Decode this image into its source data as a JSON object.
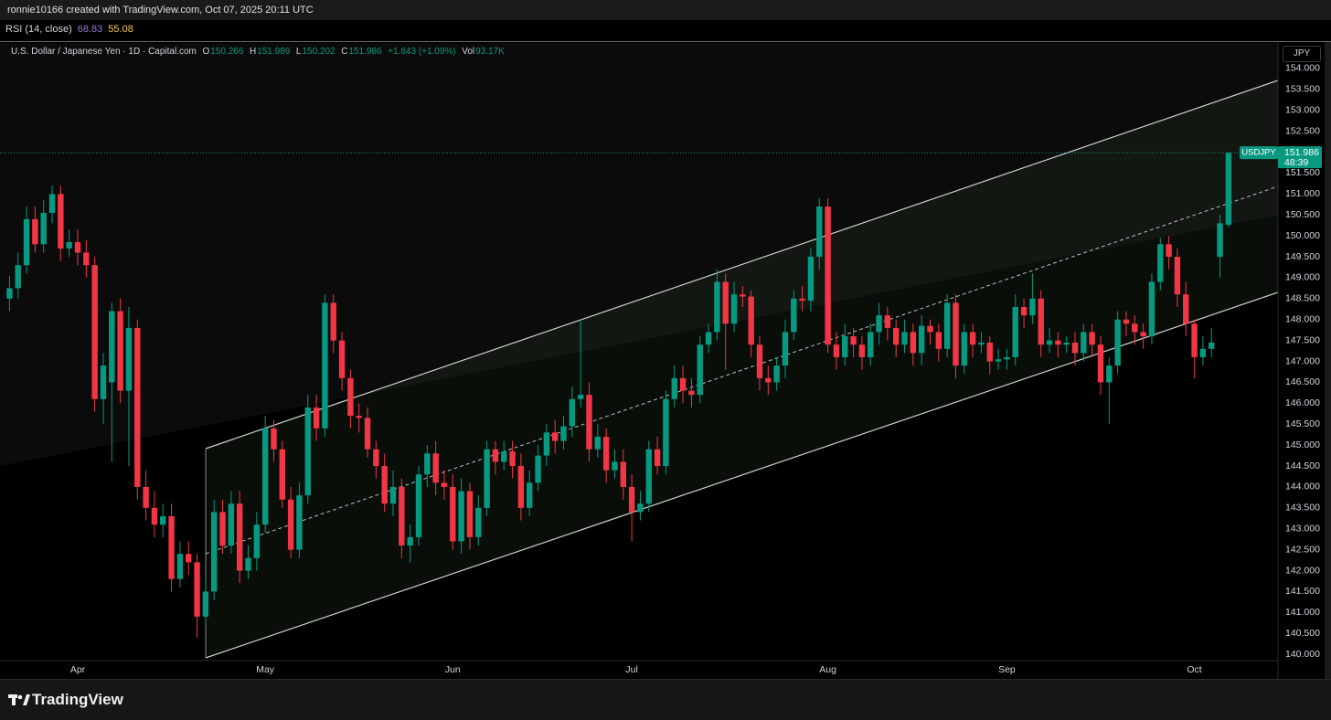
{
  "attribution": "ronnie10166 created with TradingView.com, Oct 07, 2025 20:11 UTC",
  "indicator": {
    "name": "RSI (14, close)",
    "values": [
      68.83,
      55.08
    ],
    "colors": [
      "#9575cd",
      "#f7c948"
    ]
  },
  "currency": "JPY",
  "logo": "TradingView",
  "chart_data": {
    "type": "candlestick",
    "title": "U.S. Dollar / Japanese Yen · 1D · Capital.com",
    "ohlc_labels": {
      "open": "O",
      "high": "H",
      "low": "L",
      "close": "C"
    },
    "change": "+1.643 (+1.09%)",
    "volume_label": "Vol",
    "volume": "93.17K",
    "symbol": "USDJPY",
    "countdown": "48:39",
    "up_color": "#089981",
    "down_color": "#f23645",
    "ylim": [
      139.85,
      154.61
    ],
    "yticks": [
      {
        "value": 140.0,
        "label": "140.000"
      },
      {
        "value": 140.5,
        "label": "140.500"
      },
      {
        "value": 141.0,
        "label": "141.000"
      },
      {
        "value": 141.5,
        "label": "141.500"
      },
      {
        "value": 142.0,
        "label": "142.000"
      },
      {
        "value": 142.5,
        "label": "142.500"
      },
      {
        "value": 143.0,
        "label": "143.000"
      },
      {
        "value": 143.5,
        "label": "143.500"
      },
      {
        "value": 144.0,
        "label": "144.000"
      },
      {
        "value": 144.5,
        "label": "144.500"
      },
      {
        "value": 145.0,
        "label": "145.000"
      },
      {
        "value": 145.5,
        "label": "145.500"
      },
      {
        "value": 146.0,
        "label": "146.000"
      },
      {
        "value": 146.5,
        "label": "146.500"
      },
      {
        "value": 147.0,
        "label": "147.000"
      },
      {
        "value": 147.5,
        "label": "147.500"
      },
      {
        "value": 148.0,
        "label": "148.000"
      },
      {
        "value": 148.5,
        "label": "148.500"
      },
      {
        "value": 149.0,
        "label": "149.000"
      },
      {
        "value": 149.5,
        "label": "149.500"
      },
      {
        "value": 150.0,
        "label": "150.000"
      },
      {
        "value": 150.5,
        "label": "150.500"
      },
      {
        "value": 151.0,
        "label": "151.000"
      },
      {
        "value": 151.5,
        "label": "151.500"
      },
      {
        "value": 152.0,
        "label": "152.000"
      },
      {
        "value": 152.5,
        "label": "152.500"
      },
      {
        "value": 153.0,
        "label": "153.000"
      },
      {
        "value": 153.5,
        "label": "153.500"
      },
      {
        "value": 154.0,
        "label": "154.000"
      }
    ],
    "categories": [
      null,
      null,
      null,
      null,
      null,
      null,
      null,
      null,
      "Apr",
      null,
      null,
      null,
      null,
      null,
      null,
      null,
      null,
      null,
      null,
      null,
      null,
      null,
      null,
      null,
      null,
      null,
      null,
      null,
      null,
      null,
      "May",
      null,
      null,
      null,
      null,
      null,
      null,
      null,
      null,
      null,
      null,
      null,
      null,
      null,
      null,
      null,
      null,
      null,
      null,
      null,
      null,
      null,
      "Jun",
      null,
      null,
      null,
      null,
      null,
      null,
      null,
      null,
      null,
      null,
      null,
      null,
      null,
      null,
      null,
      null,
      null,
      null,
      null,
      null,
      "Jul",
      null,
      null,
      null,
      null,
      null,
      null,
      null,
      null,
      null,
      null,
      null,
      null,
      null,
      null,
      null,
      null,
      null,
      null,
      null,
      null,
      null,
      null,
      "Aug",
      null,
      null,
      null,
      null,
      null,
      null,
      null,
      null,
      null,
      null,
      null,
      null,
      null,
      null,
      null,
      null,
      null,
      null,
      null,
      null,
      "Sep",
      null,
      null,
      null,
      null,
      null,
      null,
      null,
      null,
      null,
      null,
      null,
      null,
      null,
      null,
      null,
      null,
      null,
      null,
      null,
      null,
      null,
      "Oct",
      null,
      null,
      null,
      null
    ],
    "open": [
      148.5,
      148.75,
      149.3,
      150.4,
      149.8,
      150.55,
      151.0,
      149.7,
      149.85,
      149.6,
      149.3,
      146.1,
      146.5,
      148.2,
      146.3,
      147.8,
      144.0,
      143.5,
      143.1,
      143.3,
      141.8,
      142.4,
      142.2,
      140.9,
      141.5,
      143.4,
      142.6,
      143.6,
      142.0,
      142.3,
      143.1,
      145.4,
      144.9,
      143.7,
      142.5,
      143.8,
      145.9,
      145.4,
      148.4,
      147.5,
      146.6,
      145.7,
      145.65,
      144.9,
      144.5,
      143.6,
      144.0,
      142.6,
      142.8,
      144.3,
      144.8,
      144.1,
      144.0,
      142.7,
      143.9,
      142.8,
      143.5,
      144.9,
      144.6,
      144.85,
      144.5,
      143.5,
      144.1,
      144.75,
      145.3,
      145.1,
      145.45,
      146.1,
      146.2,
      144.9,
      145.2,
      144.4,
      144.6,
      144.0,
      143.4,
      143.6,
      144.9,
      144.5,
      146.1,
      146.6,
      146.3,
      146.2,
      147.4,
      147.7,
      148.9,
      147.9,
      148.6,
      148.55,
      147.4,
      146.6,
      146.5,
      146.9,
      147.7,
      148.5,
      148.45,
      149.5,
      150.7,
      147.4,
      147.1,
      147.6,
      147.4,
      147.1,
      147.7,
      148.1,
      147.8,
      147.4,
      147.7,
      147.2,
      147.85,
      147.7,
      147.3,
      148.4,
      146.9,
      147.7,
      147.4,
      147.45,
      147.0,
      147.05,
      147.1,
      148.3,
      148.1,
      148.5,
      147.4,
      147.5,
      147.4,
      147.45,
      147.2,
      147.7,
      147.4,
      146.5,
      146.9,
      148.0,
      147.9,
      147.7,
      147.6,
      148.9,
      149.8,
      149.5,
      148.6,
      147.9,
      147.1,
      147.3,
      149.5,
      150.266
    ],
    "high": [
      149.05,
      149.6,
      150.7,
      150.7,
      150.85,
      151.2,
      151.2,
      150.15,
      150.15,
      149.9,
      149.5,
      147.2,
      148.4,
      148.5,
      148.3,
      148.0,
      144.4,
      143.9,
      143.6,
      143.6,
      142.7,
      142.7,
      142.4,
      141.8,
      143.7,
      143.7,
      143.9,
      143.9,
      142.6,
      143.4,
      145.7,
      145.6,
      145.1,
      144.0,
      144.1,
      146.2,
      146.2,
      148.6,
      148.6,
      147.7,
      146.8,
      146.0,
      145.9,
      145.1,
      144.8,
      144.4,
      144.2,
      143.1,
      144.5,
      145.0,
      145.1,
      144.4,
      144.3,
      144.2,
      144.1,
      143.8,
      145.1,
      145.1,
      145.1,
      145.1,
      144.8,
      144.4,
      145.0,
      145.5,
      145.6,
      145.7,
      146.4,
      148.0,
      146.5,
      145.5,
      145.4,
      144.9,
      144.9,
      144.3,
      143.9,
      145.1,
      145.2,
      146.3,
      146.9,
      146.9,
      146.6,
      147.6,
      147.9,
      149.2,
      149.1,
      148.9,
      148.8,
      148.7,
      147.6,
      146.9,
      147.1,
      148.0,
      148.7,
      148.8,
      149.7,
      150.9,
      150.9,
      147.7,
      147.9,
      147.8,
      147.6,
      147.9,
      148.4,
      148.3,
      148.0,
      148.0,
      147.9,
      148.1,
      148.0,
      147.9,
      148.6,
      148.6,
      147.9,
      147.9,
      147.7,
      147.6,
      147.3,
      147.3,
      148.6,
      148.5,
      149.1,
      148.7,
      147.8,
      147.7,
      147.6,
      147.7,
      147.9,
      147.9,
      147.6,
      147.1,
      148.2,
      148.2,
      148.1,
      147.9,
      149.1,
      149.95,
      150.0,
      149.7,
      148.9,
      148.0,
      147.6,
      147.8,
      150.5,
      151.989
    ],
    "low": [
      148.2,
      148.5,
      149.1,
      149.6,
      149.6,
      150.3,
      149.4,
      149.5,
      149.3,
      149.0,
      145.8,
      145.5,
      144.6,
      146.0,
      144.5,
      143.7,
      143.2,
      142.8,
      142.8,
      141.5,
      141.6,
      141.9,
      140.4,
      140.7,
      141.3,
      142.4,
      142.4,
      141.7,
      141.8,
      142.0,
      142.9,
      144.6,
      143.5,
      142.3,
      142.3,
      143.6,
      145.1,
      145.2,
      147.2,
      146.3,
      145.4,
      145.3,
      144.7,
      144.2,
      143.4,
      143.3,
      142.3,
      142.2,
      142.6,
      144.0,
      143.8,
      143.7,
      142.5,
      142.4,
      142.5,
      142.6,
      143.3,
      144.3,
      144.4,
      144.2,
      143.2,
      143.3,
      143.9,
      144.5,
      144.8,
      144.9,
      145.2,
      145.9,
      144.6,
      144.7,
      144.1,
      144.2,
      143.7,
      142.7,
      143.2,
      143.4,
      144.3,
      144.3,
      145.9,
      146.0,
      145.9,
      146.0,
      147.2,
      147.5,
      146.8,
      147.7,
      148.3,
      147.1,
      146.3,
      146.2,
      146.3,
      146.6,
      147.5,
      148.2,
      148.2,
      149.2,
      147.2,
      146.8,
      146.9,
      147.1,
      146.8,
      146.9,
      147.4,
      147.5,
      147.1,
      147.2,
      146.9,
      146.9,
      147.4,
      147.0,
      147.1,
      146.6,
      146.7,
      147.1,
      147.2,
      146.7,
      146.8,
      146.8,
      146.9,
      147.8,
      147.9,
      147.1,
      147.2,
      147.1,
      147.2,
      146.9,
      147.0,
      147.1,
      146.2,
      145.5,
      146.7,
      147.6,
      147.4,
      147.3,
      147.4,
      148.7,
      149.2,
      148.3,
      147.6,
      146.6,
      146.9,
      147.1,
      149.0,
      150.202
    ],
    "close": [
      148.75,
      149.3,
      150.4,
      149.8,
      150.55,
      151.0,
      149.7,
      149.85,
      149.6,
      149.3,
      146.1,
      146.9,
      148.2,
      146.3,
      147.8,
      144.0,
      143.5,
      143.1,
      143.3,
      141.8,
      142.4,
      142.2,
      140.9,
      141.5,
      143.4,
      142.6,
      143.6,
      142.0,
      142.3,
      143.1,
      145.4,
      144.9,
      143.7,
      142.5,
      143.8,
      145.9,
      145.4,
      148.4,
      147.5,
      146.6,
      145.7,
      145.65,
      144.9,
      144.5,
      143.6,
      144.0,
      142.6,
      142.8,
      144.3,
      144.8,
      144.1,
      144.0,
      142.7,
      143.9,
      142.8,
      143.5,
      144.9,
      144.6,
      144.85,
      144.5,
      143.5,
      144.1,
      144.75,
      145.3,
      145.1,
      145.45,
      146.1,
      146.2,
      144.9,
      145.2,
      144.4,
      144.6,
      144.0,
      143.4,
      143.6,
      144.9,
      144.5,
      146.1,
      146.6,
      146.3,
      146.2,
      147.4,
      147.7,
      148.9,
      147.9,
      148.6,
      148.55,
      147.4,
      146.6,
      146.5,
      146.9,
      147.7,
      148.5,
      148.45,
      149.5,
      150.7,
      147.4,
      147.1,
      147.6,
      147.4,
      147.1,
      147.7,
      148.1,
      147.8,
      147.4,
      147.7,
      147.2,
      147.85,
      147.7,
      147.3,
      148.4,
      146.9,
      147.7,
      147.4,
      147.45,
      147.0,
      147.05,
      147.1,
      148.3,
      148.1,
      148.5,
      147.4,
      147.5,
      147.4,
      147.45,
      147.2,
      147.7,
      147.4,
      146.5,
      146.9,
      148.0,
      147.9,
      147.7,
      147.6,
      148.9,
      149.8,
      149.5,
      148.6,
      147.9,
      147.1,
      147.3,
      147.45,
      150.3,
      151.986
    ]
  }
}
